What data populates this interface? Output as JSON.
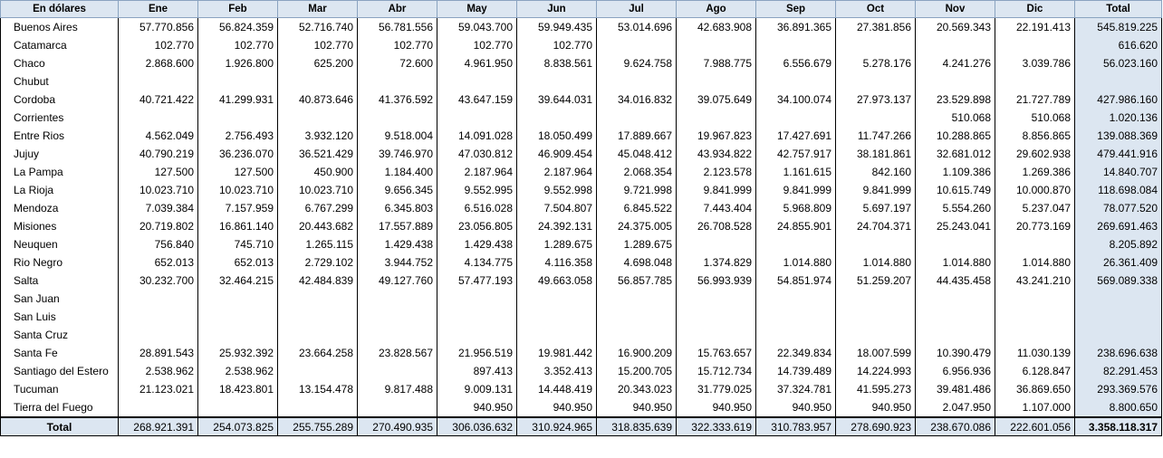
{
  "table": {
    "corner_label": "En dólares",
    "months": [
      "Ene",
      "Feb",
      "Mar",
      "Abr",
      "May",
      "Jun",
      "Jul",
      "Ago",
      "Sep",
      "Oct",
      "Nov",
      "Dic"
    ],
    "total_header": "Total",
    "rows": [
      {
        "province": "Buenos Aires",
        "values": [
          "57.770.856",
          "56.824.359",
          "52.716.740",
          "56.781.556",
          "59.043.700",
          "59.949.435",
          "53.014.696",
          "42.683.908",
          "36.891.365",
          "27.381.856",
          "20.569.343",
          "22.191.413"
        ],
        "total": "545.819.225"
      },
      {
        "province": "Catamarca",
        "values": [
          "102.770",
          "102.770",
          "102.770",
          "102.770",
          "102.770",
          "102.770",
          "",
          "",
          "",
          "",
          "",
          ""
        ],
        "total": "616.620"
      },
      {
        "province": "Chaco",
        "values": [
          "2.868.600",
          "1.926.800",
          "625.200",
          "72.600",
          "4.961.950",
          "8.838.561",
          "9.624.758",
          "7.988.775",
          "6.556.679",
          "5.278.176",
          "4.241.276",
          "3.039.786"
        ],
        "total": "56.023.160"
      },
      {
        "province": "Chubut",
        "values": [
          "",
          "",
          "",
          "",
          "",
          "",
          "",
          "",
          "",
          "",
          "",
          ""
        ],
        "total": ""
      },
      {
        "province": "Cordoba",
        "values": [
          "40.721.422",
          "41.299.931",
          "40.873.646",
          "41.376.592",
          "43.647.159",
          "39.644.031",
          "34.016.832",
          "39.075.649",
          "34.100.074",
          "27.973.137",
          "23.529.898",
          "21.727.789"
        ],
        "total": "427.986.160"
      },
      {
        "province": "Corrientes",
        "values": [
          "",
          "",
          "",
          "",
          "",
          "",
          "",
          "",
          "",
          "",
          "510.068",
          "510.068"
        ],
        "total": "1.020.136"
      },
      {
        "province": "Entre Rios",
        "values": [
          "4.562.049",
          "2.756.493",
          "3.932.120",
          "9.518.004",
          "14.091.028",
          "18.050.499",
          "17.889.667",
          "19.967.823",
          "17.427.691",
          "11.747.266",
          "10.288.865",
          "8.856.865"
        ],
        "total": "139.088.369"
      },
      {
        "province": "Jujuy",
        "values": [
          "40.790.219",
          "36.236.070",
          "36.521.429",
          "39.746.970",
          "47.030.812",
          "46.909.454",
          "45.048.412",
          "43.934.822",
          "42.757.917",
          "38.181.861",
          "32.681.012",
          "29.602.938"
        ],
        "total": "479.441.916"
      },
      {
        "province": "La Pampa",
        "values": [
          "127.500",
          "127.500",
          "450.900",
          "1.184.400",
          "2.187.964",
          "2.187.964",
          "2.068.354",
          "2.123.578",
          "1.161.615",
          "842.160",
          "1.109.386",
          "1.269.386"
        ],
        "total": "14.840.707"
      },
      {
        "province": "La Rioja",
        "values": [
          "10.023.710",
          "10.023.710",
          "10.023.710",
          "9.656.345",
          "9.552.995",
          "9.552.998",
          "9.721.998",
          "9.841.999",
          "9.841.999",
          "9.841.999",
          "10.615.749",
          "10.000.870"
        ],
        "total": "118.698.084"
      },
      {
        "province": "Mendoza",
        "values": [
          "7.039.384",
          "7.157.959",
          "6.767.299",
          "6.345.803",
          "6.516.028",
          "7.504.807",
          "6.845.522",
          "7.443.404",
          "5.968.809",
          "5.697.197",
          "5.554.260",
          "5.237.047"
        ],
        "total": "78.077.520"
      },
      {
        "province": "Misiones",
        "values": [
          "20.719.802",
          "16.861.140",
          "20.443.682",
          "17.557.889",
          "23.056.805",
          "24.392.131",
          "24.375.005",
          "26.708.528",
          "24.855.901",
          "24.704.371",
          "25.243.041",
          "20.773.169"
        ],
        "total": "269.691.463"
      },
      {
        "province": "Neuquen",
        "values": [
          "756.840",
          "745.710",
          "1.265.115",
          "1.429.438",
          "1.429.438",
          "1.289.675",
          "1.289.675",
          "",
          "",
          "",
          "",
          ""
        ],
        "total": "8.205.892"
      },
      {
        "province": "Rio Negro",
        "values": [
          "652.013",
          "652.013",
          "2.729.102",
          "3.944.752",
          "4.134.775",
          "4.116.358",
          "4.698.048",
          "1.374.829",
          "1.014.880",
          "1.014.880",
          "1.014.880",
          "1.014.880"
        ],
        "total": "26.361.409"
      },
      {
        "province": "Salta",
        "values": [
          "30.232.700",
          "32.464.215",
          "42.484.839",
          "49.127.760",
          "57.477.193",
          "49.663.058",
          "56.857.785",
          "56.993.939",
          "54.851.974",
          "51.259.207",
          "44.435.458",
          "43.241.210"
        ],
        "total": "569.089.338"
      },
      {
        "province": "San Juan",
        "values": [
          "",
          "",
          "",
          "",
          "",
          "",
          "",
          "",
          "",
          "",
          "",
          ""
        ],
        "total": ""
      },
      {
        "province": "San Luis",
        "values": [
          "",
          "",
          "",
          "",
          "",
          "",
          "",
          "",
          "",
          "",
          "",
          ""
        ],
        "total": ""
      },
      {
        "province": "Santa Cruz",
        "values": [
          "",
          "",
          "",
          "",
          "",
          "",
          "",
          "",
          "",
          "",
          "",
          ""
        ],
        "total": ""
      },
      {
        "province": "Santa Fe",
        "values": [
          "28.891.543",
          "25.932.392",
          "23.664.258",
          "23.828.567",
          "21.956.519",
          "19.981.442",
          "16.900.209",
          "15.763.657",
          "22.349.834",
          "18.007.599",
          "10.390.479",
          "11.030.139"
        ],
        "total": "238.696.638"
      },
      {
        "province": "Santiago del Estero",
        "values": [
          "2.538.962",
          "2.538.962",
          "",
          "",
          "897.413",
          "3.352.413",
          "15.200.705",
          "15.712.734",
          "14.739.489",
          "14.224.993",
          "6.956.936",
          "6.128.847"
        ],
        "total": "82.291.453"
      },
      {
        "province": "Tucuman",
        "values": [
          "21.123.021",
          "18.423.801",
          "13.154.478",
          "9.817.488",
          "9.009.131",
          "14.448.419",
          "20.343.023",
          "31.779.025",
          "37.324.781",
          "41.595.273",
          "39.481.486",
          "36.869.650"
        ],
        "total": "293.369.576"
      },
      {
        "province": "Tierra del Fuego",
        "values": [
          "",
          "",
          "",
          "",
          "940.950",
          "940.950",
          "940.950",
          "940.950",
          "940.950",
          "940.950",
          "2.047.950",
          "1.107.000"
        ],
        "total": "8.800.650"
      }
    ],
    "footer": {
      "label": "Total",
      "values": [
        "268.921.391",
        "254.073.825",
        "255.755.289",
        "270.490.935",
        "306.036.632",
        "310.924.965",
        "318.835.639",
        "322.333.619",
        "310.783.957",
        "278.690.923",
        "238.670.086",
        "222.601.056"
      ],
      "grand_total": "3.358.118.317"
    },
    "colors": {
      "header_bg": "#dce6f1",
      "border": "#000000"
    }
  }
}
